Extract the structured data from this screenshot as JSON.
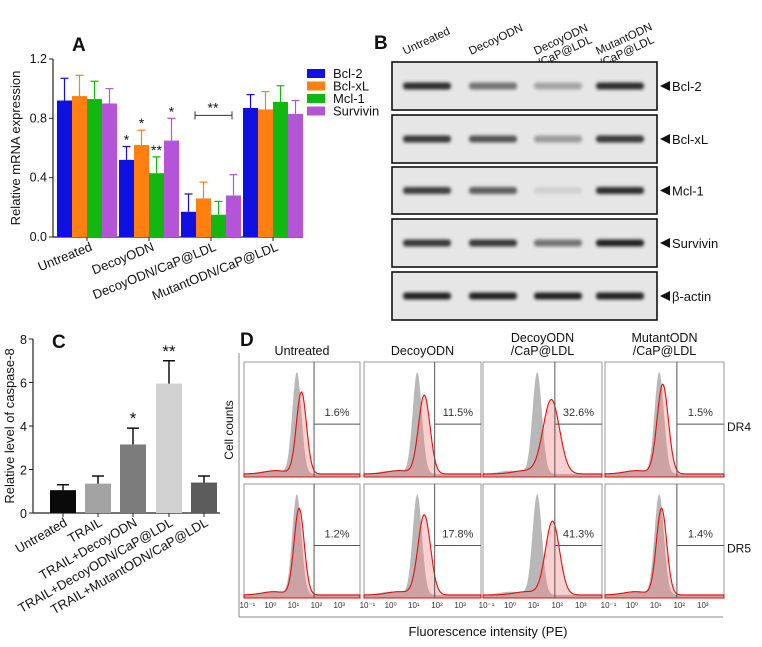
{
  "figure": {
    "panel_labels": {
      "a": "A",
      "b": "B",
      "c": "C",
      "d": "D"
    }
  },
  "chart_data": [
    {
      "id": "A",
      "type": "bar",
      "title": "",
      "xlabel": "",
      "ylabel": "Relative mRNA expression",
      "ylim": [
        0,
        1.2
      ],
      "yticks": [
        "0.0",
        "0.4",
        "0.8",
        "1.2"
      ],
      "categories": [
        "Untreated",
        "DecoyODN",
        "DecoyODN/CaP@LDL",
        "MutantODN/CaP@LDL"
      ],
      "legend_position": "right",
      "series": [
        {
          "name": "Bcl-2",
          "color": "#1010e0",
          "values": [
            0.92,
            0.52,
            0.17,
            0.87
          ],
          "errors": [
            0.15,
            0.09,
            0.12,
            0.09
          ],
          "stars": [
            "",
            "*",
            "",
            ""
          ]
        },
        {
          "name": "Bcl-xL",
          "color": "#ff7f10",
          "values": [
            0.95,
            0.62,
            0.26,
            0.86
          ],
          "errors": [
            0.14,
            0.1,
            0.11,
            0.12
          ],
          "stars": [
            "",
            "*",
            "",
            ""
          ]
        },
        {
          "name": "Mcl-1",
          "color": "#10b810",
          "values": [
            0.93,
            0.43,
            0.15,
            0.91
          ],
          "errors": [
            0.12,
            0.11,
            0.09,
            0.11
          ],
          "stars": [
            "",
            "**",
            "",
            ""
          ]
        },
        {
          "name": "Survivin",
          "color": "#b455d8",
          "values": [
            0.9,
            0.65,
            0.28,
            0.83
          ],
          "errors": [
            0.1,
            0.15,
            0.14,
            0.09
          ],
          "stars": [
            "",
            "*",
            "",
            ""
          ]
        }
      ],
      "annotations": [
        {
          "text": "**",
          "group": "DecoyODN/CaP@LDL",
          "type": "bracket",
          "level": 0.82
        }
      ]
    },
    {
      "id": "B",
      "type": "table",
      "title": "Western blot",
      "lanes": [
        [
          "Untreated"
        ],
        [
          "DecoyODN"
        ],
        [
          "DecoyODN",
          "/CaP@LDL"
        ],
        [
          "MutantODN",
          "/CaP@LDL"
        ]
      ],
      "rows": [
        {
          "name": "Bcl-2",
          "intensity": [
            0.9,
            0.55,
            0.3,
            0.9
          ]
        },
        {
          "name": "Bcl-xL",
          "intensity": [
            0.85,
            0.7,
            0.35,
            0.85
          ]
        },
        {
          "name": "Mcl-1",
          "intensity": [
            0.8,
            0.65,
            0.08,
            0.9
          ]
        },
        {
          "name": "Survivin",
          "intensity": [
            0.85,
            0.85,
            0.55,
            0.95
          ]
        },
        {
          "name": "β-actin",
          "intensity": [
            0.95,
            0.95,
            0.95,
            0.95
          ]
        }
      ]
    },
    {
      "id": "C",
      "type": "bar",
      "title": "",
      "xlabel": "",
      "ylabel": "Relative level of caspase-8",
      "ylim": [
        0,
        8
      ],
      "yticks": [
        "0",
        "2",
        "4",
        "6",
        "8"
      ],
      "categories": [
        "Untreated",
        "TRAIL",
        "TRAIL+DecoyODN",
        "TRAIL+DecoyODN/CaP@LDL",
        "TRAIL+MutantODN/CaP@LDL"
      ],
      "values": [
        1.05,
        1.35,
        3.15,
        5.95,
        1.4
      ],
      "errors": [
        0.25,
        0.35,
        0.75,
        1.05,
        0.3
      ],
      "colors": [
        "#0a0a0a",
        "#a3a3a3",
        "#7c7c7c",
        "#d2d2d2",
        "#5c5c5c"
      ],
      "stars": [
        "",
        "",
        "*",
        "**",
        ""
      ]
    },
    {
      "id": "D",
      "type": "area",
      "title": "",
      "xlabel": "Fluorescence intensity (PE)",
      "ylabel": "Cell counts",
      "x_scale": "log10",
      "xlim_log10": [
        -1.15,
        3.9
      ],
      "xticks": [
        "10⁻¹",
        "10⁰",
        "10¹",
        "10²",
        "10³"
      ],
      "gate_log10": 1.9,
      "columns": [
        [
          "Untreated"
        ],
        [
          "DecoyODN"
        ],
        [
          "DecoyODN",
          "/CaP@LDL"
        ],
        [
          "MutantODN",
          "/CaP@LDL"
        ]
      ],
      "rows": [
        {
          "name": "DR4",
          "percent": [
            "1.6%",
            "11.5%",
            "32.6%",
            "1.5%"
          ],
          "control_peak_log10": [
            1.15,
            1.15,
            1.15,
            1.15
          ],
          "sample_peak_log10": [
            1.35,
            1.45,
            1.75,
            1.3
          ],
          "sample_width": [
            0.22,
            0.25,
            0.35,
            0.24
          ],
          "sample_height": [
            0.75,
            0.72,
            0.68,
            0.82
          ]
        },
        {
          "name": "DR5",
          "percent": [
            "1.2%",
            "17.8%",
            "41.3%",
            "1.4%"
          ],
          "control_peak_log10": [
            1.15,
            1.15,
            1.15,
            1.15
          ],
          "sample_peak_log10": [
            1.25,
            1.45,
            1.8,
            1.25
          ],
          "sample_width": [
            0.22,
            0.27,
            0.3,
            0.22
          ],
          "sample_height": [
            0.8,
            0.74,
            0.68,
            0.8
          ]
        }
      ]
    }
  ]
}
